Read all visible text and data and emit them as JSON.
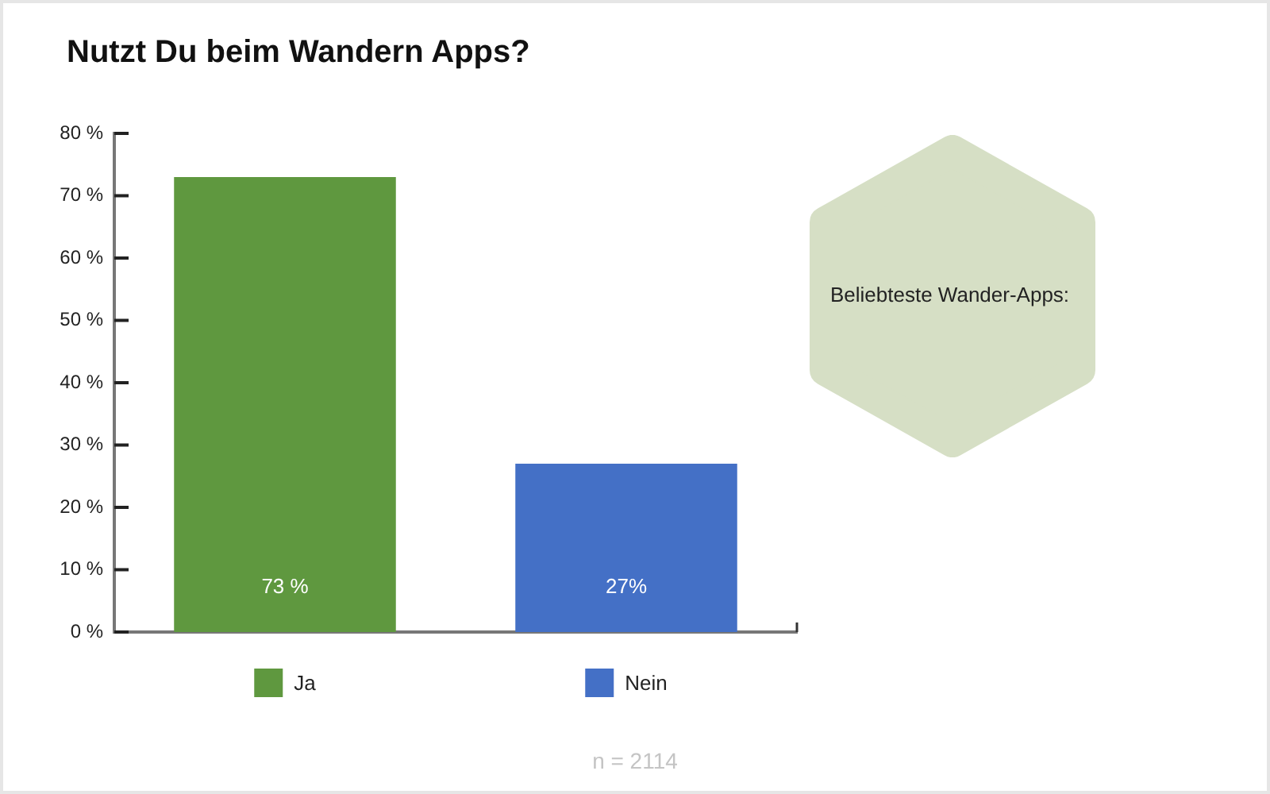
{
  "chart_data": {
    "type": "bar",
    "title": "Nutzt Du beim Wandern Apps?",
    "categories": [
      null,
      null
    ],
    "series": [
      {
        "name": "Ja",
        "color": "#5f983f",
        "values": [
          73,
          null
        ],
        "value_labels": [
          "73 %",
          null
        ]
      },
      {
        "name": "Nein",
        "color": "#4470c6",
        "values": [
          null,
          27
        ],
        "value_labels": [
          null,
          "27%"
        ]
      }
    ],
    "ylim": [
      0,
      80
    ],
    "yticks": [
      {
        "value": 0,
        "label": "0 %"
      },
      {
        "value": 10,
        "label": "10 %"
      },
      {
        "value": 20,
        "label": "20 %"
      },
      {
        "value": 30,
        "label": "30 %"
      },
      {
        "value": 40,
        "label": "40 %"
      },
      {
        "value": 50,
        "label": "50 %"
      },
      {
        "value": 60,
        "label": "60 %"
      },
      {
        "value": 70,
        "label": "70 %"
      },
      {
        "value": 80,
        "label": "80 %"
      }
    ],
    "tick_labels": "y",
    "grid": false,
    "legend": "bottom",
    "annotations": [
      "Beliebteste Wander-Apps:",
      "n = 2114"
    ]
  }
}
